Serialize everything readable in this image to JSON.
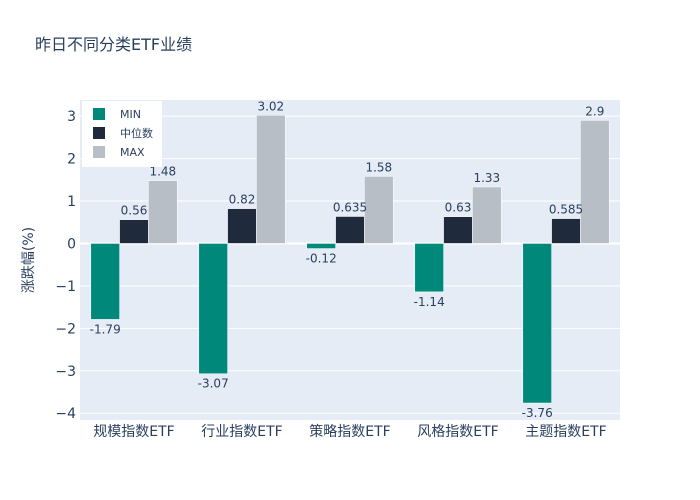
{
  "chart_data": {
    "type": "bar",
    "title": "昨日不同分类ETF业绩",
    "xlabel": "",
    "ylabel": "涨跌幅(%)",
    "ylim": [
      -4.16,
      3.38
    ],
    "yticks": [
      3,
      2,
      1,
      0,
      -1,
      -2,
      -3,
      -4
    ],
    "ytick_labels": [
      "3",
      "2",
      "1",
      "0",
      "−1",
      "−2",
      "−3",
      "−4"
    ],
    "grid": true,
    "legend_position": "top-left",
    "categories": [
      "规模指数ETF",
      "行业指数ETF",
      "策略指数ETF",
      "风格指数ETF",
      "主题指数ETF"
    ],
    "series": [
      {
        "name": "MIN",
        "color": "#00897b",
        "values": [
          -1.79,
          -3.07,
          -0.12,
          -1.14,
          -3.76
        ],
        "labels": [
          "-1.79",
          "-3.07",
          "-0.12",
          "-1.14",
          "-3.76"
        ]
      },
      {
        "name": "中位数",
        "color": "#1f2a3c",
        "values": [
          0.56,
          0.82,
          0.635,
          0.63,
          0.585
        ],
        "labels": [
          "0.56",
          "0.82",
          "0.635",
          "0.63",
          "0.585"
        ]
      },
      {
        "name": "MAX",
        "color": "#b8bec6",
        "values": [
          1.48,
          3.02,
          1.58,
          1.33,
          2.9
        ],
        "labels": [
          "1.48",
          "3.02",
          "1.58",
          "1.33",
          "2.9"
        ]
      }
    ]
  },
  "colors": {
    "plot_bg": "#e5ecf6",
    "grid": "#ffffff",
    "text": "#2a3f5f"
  }
}
